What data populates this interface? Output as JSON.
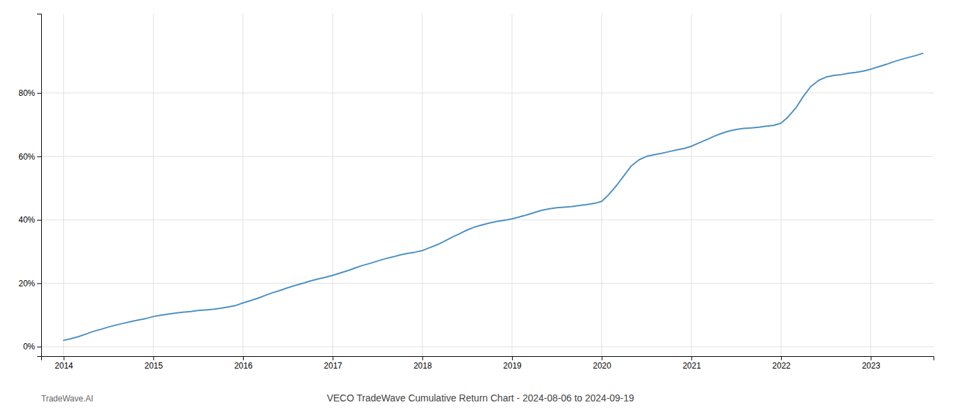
{
  "chart_data": {
    "type": "line",
    "title": "VECO TradeWave Cumulative Return Chart - 2024-08-06 to 2024-09-19",
    "annotations": [
      "TradeWave.AI"
    ],
    "color": "#4a8fc4",
    "grid": true,
    "x": [
      2014.0,
      2014.08,
      2014.17,
      2014.25,
      2014.33,
      2014.42,
      2014.5,
      2014.58,
      2014.67,
      2014.75,
      2014.83,
      2014.92,
      2015.0,
      2015.08,
      2015.17,
      2015.25,
      2015.33,
      2015.42,
      2015.5,
      2015.58,
      2015.67,
      2015.75,
      2015.83,
      2015.92,
      2016.0,
      2016.08,
      2016.17,
      2016.25,
      2016.33,
      2016.42,
      2016.5,
      2016.58,
      2016.67,
      2016.75,
      2016.83,
      2016.92,
      2017.0,
      2017.08,
      2017.17,
      2017.25,
      2017.33,
      2017.42,
      2017.5,
      2017.58,
      2017.67,
      2017.75,
      2017.83,
      2017.92,
      2018.0,
      2018.08,
      2018.17,
      2018.25,
      2018.33,
      2018.42,
      2018.5,
      2018.58,
      2018.67,
      2018.75,
      2018.83,
      2018.92,
      2019.0,
      2019.08,
      2019.17,
      2019.25,
      2019.33,
      2019.42,
      2019.5,
      2019.58,
      2019.67,
      2019.75,
      2019.83,
      2019.92,
      2020.0,
      2020.08,
      2020.17,
      2020.25,
      2020.33,
      2020.42,
      2020.5,
      2020.58,
      2020.67,
      2020.75,
      2020.83,
      2020.92,
      2021.0,
      2021.08,
      2021.17,
      2021.25,
      2021.33,
      2021.42,
      2021.5,
      2021.58,
      2021.67,
      2021.75,
      2021.83,
      2021.92,
      2022.0,
      2022.08,
      2022.17,
      2022.25,
      2022.33,
      2022.42,
      2022.5,
      2022.58,
      2022.67,
      2022.75,
      2022.83,
      2022.92,
      2023.0,
      2023.08,
      2023.17,
      2023.25,
      2023.33,
      2023.42,
      2023.5,
      2023.58
    ],
    "values": [
      2.0,
      2.5,
      3.2,
      4.0,
      4.8,
      5.5,
      6.2,
      6.8,
      7.4,
      7.9,
      8.4,
      8.9,
      9.5,
      9.9,
      10.3,
      10.6,
      10.9,
      11.1,
      11.4,
      11.6,
      11.8,
      12.1,
      12.5,
      13.0,
      13.8,
      14.5,
      15.3,
      16.2,
      17.0,
      17.8,
      18.6,
      19.3,
      20.0,
      20.7,
      21.3,
      21.9,
      22.5,
      23.2,
      24.0,
      24.8,
      25.6,
      26.3,
      27.0,
      27.7,
      28.3,
      28.9,
      29.4,
      29.8,
      30.3,
      31.2,
      32.2,
      33.3,
      34.5,
      35.7,
      36.8,
      37.7,
      38.4,
      39.0,
      39.5,
      39.9,
      40.3,
      40.9,
      41.6,
      42.3,
      43.0,
      43.5,
      43.8,
      44.0,
      44.2,
      44.5,
      44.8,
      45.2,
      45.8,
      48.0,
      51.0,
      54.0,
      57.0,
      59.0,
      60.0,
      60.5,
      61.0,
      61.5,
      62.0,
      62.5,
      63.2,
      64.2,
      65.3,
      66.3,
      67.2,
      68.0,
      68.5,
      68.8,
      69.0,
      69.2,
      69.5,
      69.8,
      70.5,
      72.5,
      75.5,
      79.0,
      82.0,
      84.0,
      85.0,
      85.5,
      85.8,
      86.2,
      86.5,
      86.9,
      87.5,
      88.2,
      89.0,
      89.8,
      90.5,
      91.2,
      91.8,
      92.5
    ],
    "xlim": [
      2013.75,
      2023.7
    ],
    "ylim": [
      -3,
      105
    ],
    "xticks": [
      2014,
      2015,
      2016,
      2017,
      2018,
      2019,
      2020,
      2021,
      2022,
      2023
    ],
    "yticks": [
      {
        "value": 0,
        "label": "0%"
      },
      {
        "value": 20,
        "label": "20%"
      },
      {
        "value": 40,
        "label": "40%"
      },
      {
        "value": 60,
        "label": "60%"
      },
      {
        "value": 80,
        "label": "80%"
      }
    ]
  }
}
